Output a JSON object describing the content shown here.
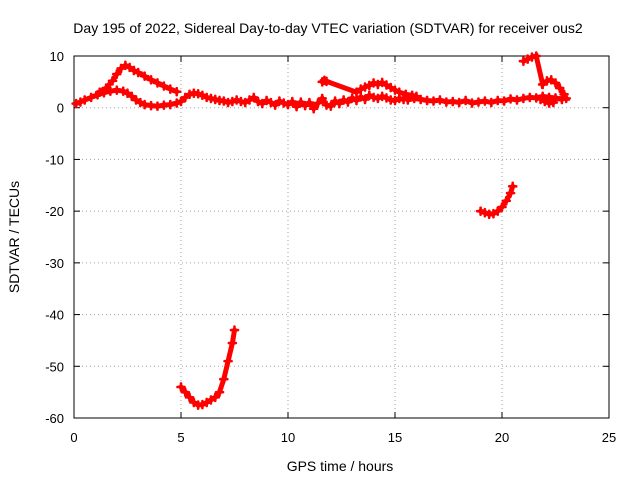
{
  "chart_data": {
    "type": "scatter",
    "title": "Day 195 of 2022, Sidereal Day-to-day VTEC variation (SDTVAR) for receiver ous2",
    "xlabel": "GPS time / hours",
    "ylabel": "SDTVAR / TECUs",
    "xlim": [
      0,
      25
    ],
    "ylim": [
      -60,
      10
    ],
    "xticks": [
      "0",
      "5",
      "10",
      "15",
      "20",
      "25"
    ],
    "yticks": [
      "-60",
      "-50",
      "-40",
      "-30",
      "-20",
      "-10",
      "0",
      "10"
    ],
    "grid": true,
    "marker": "+",
    "series": [
      {
        "name": "upper-arc-early",
        "color": "#ff0000",
        "points": [
          [
            1.2,
            3.0
          ],
          [
            1.5,
            3.8
          ],
          [
            1.8,
            5.2
          ],
          [
            2.0,
            6.5
          ],
          [
            2.2,
            7.6
          ],
          [
            2.4,
            8.2
          ],
          [
            2.6,
            7.8
          ],
          [
            2.8,
            7.2
          ],
          [
            3.0,
            6.8
          ],
          [
            3.3,
            6.1
          ],
          [
            3.6,
            5.4
          ],
          [
            3.9,
            4.8
          ],
          [
            4.2,
            4.2
          ],
          [
            4.5,
            3.6
          ],
          [
            4.8,
            3.1
          ]
        ]
      },
      {
        "name": "low-level-early",
        "color": "#ff0000",
        "points": [
          [
            0.1,
            0.8
          ],
          [
            0.3,
            1.1
          ],
          [
            0.5,
            1.5
          ],
          [
            0.8,
            2.0
          ],
          [
            1.1,
            2.5
          ],
          [
            1.4,
            2.9
          ],
          [
            1.7,
            3.2
          ],
          [
            2.0,
            3.4
          ],
          [
            2.3,
            3.2
          ],
          [
            2.5,
            2.8
          ],
          [
            2.7,
            2.2
          ],
          [
            2.9,
            1.5
          ],
          [
            3.1,
            1.0
          ],
          [
            3.3,
            0.6
          ],
          [
            3.6,
            0.4
          ],
          [
            3.9,
            0.3
          ],
          [
            4.2,
            0.5
          ],
          [
            4.5,
            0.6
          ],
          [
            4.8,
            0.9
          ],
          [
            5.0,
            1.2
          ],
          [
            5.2,
            2.0
          ],
          [
            5.4,
            2.6
          ],
          [
            5.6,
            2.8
          ],
          [
            5.8,
            2.7
          ],
          [
            6.0,
            2.4
          ],
          [
            6.2,
            2.0
          ],
          [
            6.4,
            1.8
          ],
          [
            6.6,
            1.6
          ],
          [
            6.8,
            1.4
          ],
          [
            7.0,
            1.3
          ],
          [
            7.2,
            1.0
          ],
          [
            7.4,
            1.2
          ],
          [
            7.6,
            1.5
          ],
          [
            7.8,
            1.2
          ],
          [
            8.0,
            1.0
          ]
        ]
      },
      {
        "name": "low-level-mid",
        "color": "#ff0000",
        "points": [
          [
            8.2,
            1.5
          ],
          [
            8.4,
            2.0
          ],
          [
            8.6,
            1.2
          ],
          [
            8.8,
            0.8
          ],
          [
            9.0,
            1.4
          ],
          [
            9.2,
            1.0
          ],
          [
            9.4,
            0.5
          ],
          [
            9.6,
            1.3
          ],
          [
            9.8,
            0.9
          ],
          [
            10.0,
            0.6
          ],
          [
            10.2,
            1.2
          ],
          [
            10.4,
            0.2
          ],
          [
            10.6,
            1.1
          ],
          [
            10.8,
            0.4
          ],
          [
            11.0,
            1.0
          ],
          [
            11.2,
            -0.2
          ],
          [
            11.4,
            0.9
          ],
          [
            11.6,
            1.8
          ],
          [
            11.8,
            0.5
          ],
          [
            12.0,
            0.3
          ],
          [
            12.2,
            1.3
          ],
          [
            12.4,
            0.8
          ],
          [
            12.6,
            1.5
          ],
          [
            12.8,
            1.1
          ],
          [
            13.0,
            1.9
          ],
          [
            13.2,
            1.4
          ],
          [
            13.4,
            2.1
          ],
          [
            13.6,
            1.6
          ],
          [
            13.8,
            2.4
          ],
          [
            14.0,
            2.0
          ],
          [
            14.2,
            1.8
          ],
          [
            14.4,
            2.2
          ],
          [
            14.6,
            1.9
          ],
          [
            14.8,
            1.5
          ],
          [
            15.0,
            1.4
          ],
          [
            15.2,
            1.8
          ],
          [
            15.4,
            1.6
          ]
        ]
      },
      {
        "name": "upper-arc-mid",
        "color": "#ff0000",
        "points": [
          [
            11.6,
            5.0
          ],
          [
            11.7,
            5.3
          ],
          [
            11.8,
            5.1
          ],
          [
            13.2,
            3.0
          ],
          [
            13.4,
            3.6
          ],
          [
            13.6,
            4.0
          ],
          [
            13.8,
            4.3
          ],
          [
            14.0,
            4.8
          ],
          [
            14.2,
            4.5
          ],
          [
            14.4,
            4.9
          ],
          [
            14.6,
            4.4
          ],
          [
            14.8,
            3.9
          ],
          [
            15.0,
            3.4
          ],
          [
            15.2,
            3.0
          ],
          [
            15.5,
            2.6
          ],
          [
            15.8,
            2.4
          ],
          [
            16.0,
            2.2
          ]
        ]
      },
      {
        "name": "low-level-late",
        "color": "#ff0000",
        "points": [
          [
            15.6,
            1.5
          ],
          [
            15.9,
            1.8
          ],
          [
            16.2,
            1.6
          ],
          [
            16.5,
            1.4
          ],
          [
            16.8,
            1.3
          ],
          [
            17.1,
            1.5
          ],
          [
            17.4,
            1.1
          ],
          [
            17.7,
            1.2
          ],
          [
            18.0,
            1.0
          ],
          [
            18.3,
            1.4
          ],
          [
            18.6,
            0.9
          ],
          [
            18.9,
            1.1
          ],
          [
            19.2,
            1.3
          ],
          [
            19.5,
            1.0
          ],
          [
            19.8,
            1.4
          ],
          [
            20.1,
            1.3
          ],
          [
            20.4,
            1.7
          ],
          [
            20.7,
            1.5
          ],
          [
            21.0,
            1.8
          ],
          [
            21.3,
            2.0
          ],
          [
            21.6,
            1.9
          ],
          [
            21.9,
            2.2
          ],
          [
            22.2,
            2.0
          ],
          [
            22.5,
            1.9
          ],
          [
            22.8,
            1.6
          ]
        ]
      },
      {
        "name": "late-spikes",
        "color": "#ff0000",
        "points": [
          [
            21.0,
            9.0
          ],
          [
            21.2,
            9.4
          ],
          [
            21.4,
            9.8
          ],
          [
            21.6,
            10.0
          ],
          [
            21.9,
            4.5
          ],
          [
            22.1,
            5.2
          ],
          [
            22.3,
            5.4
          ],
          [
            22.5,
            4.8
          ],
          [
            22.7,
            3.8
          ],
          [
            22.9,
            2.6
          ],
          [
            23.0,
            1.8
          ],
          [
            21.8,
            1.6
          ],
          [
            22.0,
            1.2
          ],
          [
            22.2,
            0.9
          ],
          [
            22.4,
            1.0
          ]
        ]
      },
      {
        "name": "negative-arc-late",
        "color": "#ff0000",
        "points": [
          [
            19.0,
            -20.0
          ],
          [
            19.2,
            -20.3
          ],
          [
            19.4,
            -20.6
          ],
          [
            19.6,
            -20.5
          ],
          [
            19.8,
            -20.0
          ],
          [
            20.0,
            -19.2
          ],
          [
            20.2,
            -18.0
          ],
          [
            20.4,
            -16.5
          ],
          [
            20.5,
            -15.2
          ]
        ]
      },
      {
        "name": "negative-arc-early",
        "color": "#ff0000",
        "points": [
          [
            5.0,
            -54.0
          ],
          [
            5.2,
            -55.0
          ],
          [
            5.4,
            -56.0
          ],
          [
            5.6,
            -57.0
          ],
          [
            5.8,
            -57.5
          ],
          [
            6.0,
            -57.4
          ],
          [
            6.2,
            -57.0
          ],
          [
            6.4,
            -56.5
          ],
          [
            6.6,
            -56.0
          ],
          [
            6.8,
            -55.0
          ],
          [
            7.0,
            -52.5
          ],
          [
            7.2,
            -49.0
          ],
          [
            7.4,
            -45.5
          ],
          [
            7.5,
            -43.0
          ]
        ]
      }
    ]
  }
}
